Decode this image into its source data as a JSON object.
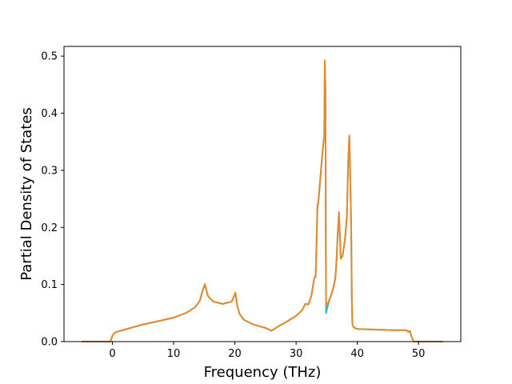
{
  "chart_data": {
    "type": "line",
    "title": "",
    "xlabel": "Frequency (THz)",
    "ylabel": "Partial Density of States",
    "xlim": [
      -7.9,
      56.9
    ],
    "ylim": [
      0,
      0.517
    ],
    "xticks": [
      0,
      10,
      20,
      30,
      40,
      50
    ],
    "yticks": [
      0.0,
      0.1,
      0.2,
      0.3,
      0.4,
      0.5
    ],
    "xtick_labels": [
      "0",
      "10",
      "20",
      "30",
      "40",
      "50"
    ],
    "ytick_labels": [
      "0.0",
      "0.1",
      "0.2",
      "0.3",
      "0.4",
      "0.5"
    ],
    "grid": false,
    "legend": "none",
    "series": [
      {
        "color": "#17becf",
        "x": [
          -5,
          -0.3,
          0,
          0.3,
          1,
          3,
          5,
          8,
          10,
          12,
          13.5,
          14.3,
          14.7,
          15.1,
          15.6,
          16.5,
          18,
          19.5,
          20.1,
          20.4,
          20.8,
          21.5,
          23,
          25,
          26,
          27,
          28.5,
          30,
          31,
          31.5,
          32,
          32.5,
          33,
          33.2,
          33.5,
          33.6,
          34,
          34.3,
          34.6,
          34.7,
          34.8,
          34.85,
          34.9,
          35.1,
          35.5,
          36,
          36.4,
          36.6,
          36.8,
          37.0,
          37.1,
          37.3,
          37.6,
          38,
          38.3,
          38.5,
          38.7,
          38.85,
          39,
          39.1,
          39.2,
          39.4,
          40,
          43,
          46,
          48,
          48.3,
          48.6,
          48.8,
          49.2,
          49.5,
          52,
          54
        ],
        "y": [
          0,
          0,
          0.01,
          0.015,
          0.018,
          0.024,
          0.03,
          0.037,
          0.042,
          0.05,
          0.06,
          0.072,
          0.088,
          0.1,
          0.08,
          0.07,
          0.066,
          0.07,
          0.085,
          0.062,
          0.048,
          0.038,
          0.03,
          0.024,
          0.019,
          0.026,
          0.035,
          0.045,
          0.055,
          0.066,
          0.065,
          0.08,
          0.113,
          0.113,
          0.24,
          0.24,
          0.29,
          0.33,
          0.36,
          0.49,
          0.44,
          0.2,
          0.05,
          0.06,
          0.075,
          0.09,
          0.11,
          0.14,
          0.19,
          0.225,
          0.2,
          0.145,
          0.15,
          0.18,
          0.22,
          0.31,
          0.36,
          0.29,
          0.2,
          0.08,
          0.03,
          0.025,
          0.022,
          0.021,
          0.02,
          0.02,
          0.017,
          0.019,
          0.01,
          0,
          0,
          0,
          0
        ]
      },
      {
        "color": "#e8892a",
        "x": [
          -5,
          -0.3,
          0,
          0.3,
          1,
          3,
          5,
          8,
          10,
          12,
          13.5,
          14.3,
          14.7,
          15.1,
          15.6,
          16.5,
          18,
          19.5,
          20.1,
          20.4,
          20.8,
          21.5,
          23,
          25,
          26,
          27,
          28.5,
          30,
          31,
          31.5,
          32,
          32.5,
          33,
          33.2,
          33.5,
          33.6,
          34,
          34.3,
          34.6,
          34.7,
          34.8,
          34.85,
          34.9,
          35.1,
          35.5,
          36,
          36.4,
          36.6,
          36.8,
          37.0,
          37.1,
          37.3,
          37.6,
          38,
          38.3,
          38.5,
          38.7,
          38.85,
          39,
          39.1,
          39.2,
          39.4,
          40,
          43,
          46,
          48,
          48.3,
          48.6,
          48.8,
          49.2,
          49.5,
          52,
          54
        ],
        "y": [
          0,
          0,
          0.01,
          0.015,
          0.018,
          0.024,
          0.03,
          0.037,
          0.042,
          0.05,
          0.06,
          0.072,
          0.088,
          0.101,
          0.08,
          0.07,
          0.066,
          0.07,
          0.086,
          0.062,
          0.048,
          0.038,
          0.03,
          0.024,
          0.019,
          0.026,
          0.035,
          0.045,
          0.055,
          0.066,
          0.065,
          0.08,
          0.113,
          0.113,
          0.24,
          0.24,
          0.29,
          0.33,
          0.36,
          0.493,
          0.44,
          0.2,
          0.062,
          0.065,
          0.075,
          0.09,
          0.11,
          0.14,
          0.19,
          0.227,
          0.2,
          0.145,
          0.15,
          0.18,
          0.22,
          0.31,
          0.361,
          0.29,
          0.2,
          0.08,
          0.03,
          0.025,
          0.022,
          0.021,
          0.02,
          0.02,
          0.017,
          0.019,
          0.01,
          0,
          0,
          0,
          0
        ]
      }
    ]
  }
}
